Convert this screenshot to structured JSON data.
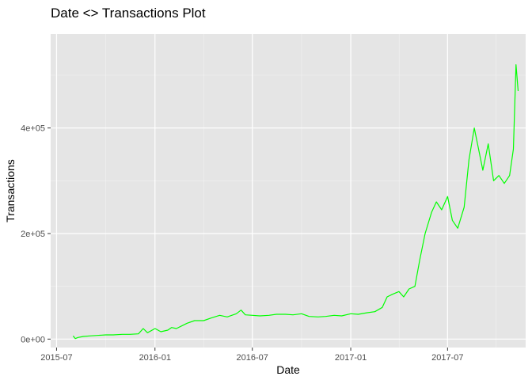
{
  "chart_data": {
    "type": "line",
    "title": "Date <> Transactions Plot",
    "xlabel": "Date",
    "ylabel": "Transactions",
    "x_ticks": [
      "2015-07",
      "2016-01",
      "2016-07",
      "2017-01",
      "2017-07"
    ],
    "y_ticks": [
      "0e+00",
      "2e+05",
      "4e+05"
    ],
    "xlim": [
      "2015-06-20",
      "2017-11-24"
    ],
    "ylim": [
      -16000,
      578000
    ],
    "grid": true,
    "background": "#e5e5e5",
    "grid_color": "#ffffff",
    "line_color": "#00ff00",
    "series": [
      {
        "x": [
          "2015-08-01",
          "2015-08-05",
          "2015-08-10",
          "2015-08-20",
          "2015-09-01",
          "2015-09-15",
          "2015-10-01",
          "2015-10-15",
          "2015-11-01",
          "2015-11-15",
          "2015-12-01",
          "2015-12-10",
          "2015-12-18",
          "2016-01-01",
          "2016-01-12",
          "2016-01-25",
          "2016-02-01",
          "2016-02-10",
          "2016-02-20",
          "2016-03-01",
          "2016-03-15",
          "2016-04-01",
          "2016-04-15",
          "2016-05-01",
          "2016-05-15",
          "2016-06-01",
          "2016-06-10",
          "2016-06-18",
          "2016-07-01",
          "2016-07-15",
          "2016-08-01",
          "2016-08-15",
          "2016-09-01",
          "2016-09-15",
          "2016-10-01",
          "2016-10-15",
          "2016-11-01",
          "2016-11-15",
          "2016-12-01",
          "2016-12-15",
          "2017-01-01",
          "2017-01-15",
          "2017-02-01",
          "2017-02-15",
          "2017-03-01",
          "2017-03-10",
          "2017-03-20",
          "2017-04-01",
          "2017-04-10",
          "2017-04-20",
          "2017-05-01",
          "2017-05-10",
          "2017-05-20",
          "2017-06-01",
          "2017-06-10",
          "2017-06-20",
          "2017-07-01",
          "2017-07-10",
          "2017-07-20",
          "2017-08-01",
          "2017-08-10",
          "2017-08-20",
          "2017-08-28",
          "2017-09-05",
          "2017-09-15",
          "2017-09-25",
          "2017-10-05",
          "2017-10-15",
          "2017-10-25",
          "2017-11-01",
          "2017-11-06",
          "2017-11-10"
        ],
        "values": [
          6000,
          1000,
          3000,
          5000,
          6000,
          7000,
          8000,
          8000,
          9000,
          9000,
          10000,
          20000,
          12000,
          20000,
          14000,
          17000,
          22000,
          20000,
          25000,
          30000,
          35000,
          35000,
          40000,
          45000,
          42000,
          48000,
          55000,
          46000,
          45000,
          44000,
          45000,
          47000,
          47000,
          46000,
          48000,
          43000,
          42000,
          43000,
          45000,
          44000,
          48000,
          47000,
          50000,
          52000,
          60000,
          80000,
          85000,
          90000,
          80000,
          95000,
          100000,
          150000,
          200000,
          240000,
          260000,
          245000,
          270000,
          225000,
          210000,
          250000,
          340000,
          400000,
          360000,
          320000,
          370000,
          300000,
          310000,
          295000,
          310000,
          360000,
          520000,
          470000
        ]
      }
    ]
  }
}
